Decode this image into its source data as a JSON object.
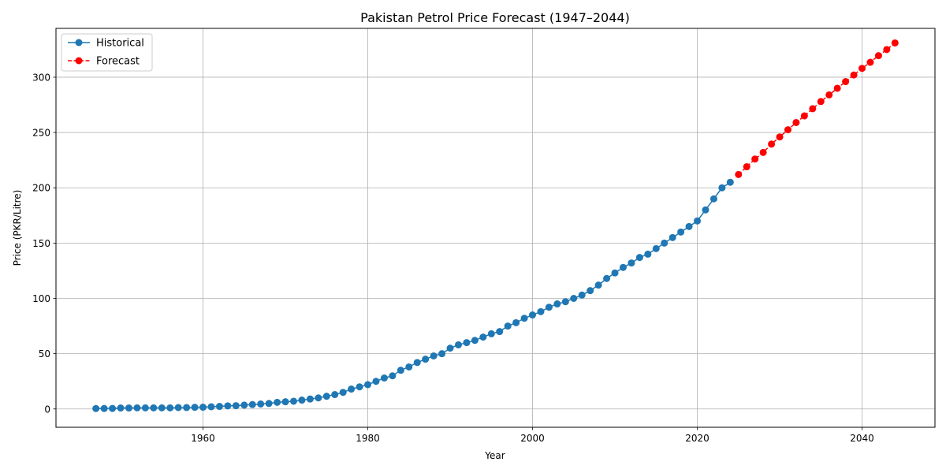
{
  "chart_data": {
    "type": "line",
    "title": "Pakistan Petrol Price Forecast (1947–2044)",
    "xlabel": "Year",
    "ylabel": "Price (PKR/Litre)",
    "xlim": [
      1942.15,
      2048.85
    ],
    "ylim": [
      -16.55,
      344.15
    ],
    "xticks": [
      1960,
      1980,
      2000,
      2020,
      2040
    ],
    "yticks": [
      0,
      50,
      100,
      150,
      200,
      250,
      300
    ],
    "grid": true,
    "legend_position": "upper-left",
    "series": [
      {
        "name": "Historical",
        "color": "#1f77b4",
        "line_style": "solid",
        "marker": "circle",
        "x": [
          1947,
          1948,
          1949,
          1950,
          1951,
          1952,
          1953,
          1954,
          1955,
          1956,
          1957,
          1958,
          1959,
          1960,
          1961,
          1962,
          1963,
          1964,
          1965,
          1966,
          1967,
          1968,
          1969,
          1970,
          1971,
          1972,
          1973,
          1974,
          1975,
          1976,
          1977,
          1978,
          1979,
          1980,
          1981,
          1982,
          1983,
          1984,
          1985,
          1986,
          1987,
          1988,
          1989,
          1990,
          1991,
          1992,
          1993,
          1994,
          1995,
          1996,
          1997,
          1998,
          1999,
          2000,
          2001,
          2002,
          2003,
          2004,
          2005,
          2006,
          2007,
          2008,
          2009,
          2010,
          2011,
          2012,
          2013,
          2014,
          2015,
          2016,
          2017,
          2018,
          2019,
          2020,
          2021,
          2022,
          2023,
          2024
        ],
        "y": [
          0.4,
          0.45,
          0.5,
          0.9,
          0.9,
          1.0,
          1.0,
          1.0,
          1.0,
          1.0,
          1.3,
          1.3,
          1.5,
          1.6,
          2.0,
          2.3,
          2.8,
          3.0,
          3.5,
          4.0,
          4.5,
          5.0,
          6.0,
          6.5,
          7.0,
          8.0,
          9.0,
          10.0,
          11.5,
          13.0,
          15.0,
          18.0,
          20.0,
          22.0,
          25.0,
          28.0,
          30.0,
          35.0,
          38.0,
          42.0,
          45.0,
          48.0,
          50.0,
          55.0,
          58.0,
          60.0,
          62.0,
          65.0,
          68.0,
          70.0,
          75.0,
          78.0,
          82.0,
          85.0,
          88.0,
          92.0,
          95.0,
          97.0,
          100.0,
          103.0,
          107.0,
          112.0,
          118.0,
          123.0,
          128.0,
          132.0,
          137.0,
          140.0,
          145.0,
          150.0,
          155.0,
          160.0,
          165.0,
          170.0,
          180.0,
          190.0,
          200.0,
          205.0
        ]
      },
      {
        "name": "Forecast",
        "color": "#ff0000",
        "line_style": "dashed",
        "marker": "circle",
        "x": [
          2025,
          2026,
          2027,
          2028,
          2029,
          2030,
          2031,
          2032,
          2033,
          2034,
          2035,
          2036,
          2037,
          2038,
          2039,
          2040,
          2041,
          2042,
          2043,
          2044
        ],
        "y": [
          212.0,
          219.0,
          226.0,
          232.0,
          239.5,
          246.0,
          252.5,
          259.0,
          265.0,
          271.5,
          278.0,
          284.0,
          290.0,
          296.0,
          302.0,
          308.0,
          313.5,
          319.5,
          325.0,
          331.0
        ]
      }
    ]
  }
}
